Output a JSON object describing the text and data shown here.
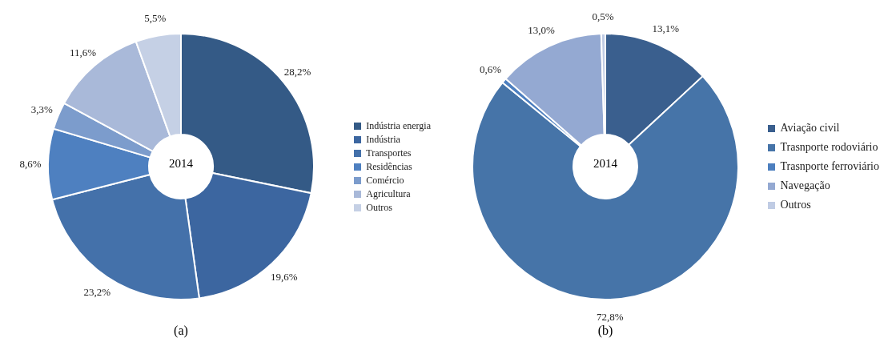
{
  "chart_data": [
    {
      "type": "donut",
      "categories": [
        "Indústria energia",
        "Indústria",
        "Transportes",
        "Residências",
        "Comércio",
        "Agricultura",
        "Outros"
      ],
      "values": [
        28.2,
        19.6,
        23.2,
        8.6,
        3.3,
        11.6,
        5.5
      ],
      "value_labels": [
        "28,2%",
        "19,6%",
        "23,2%",
        "8,6%",
        "3,3%",
        "11,6%",
        "5,5%"
      ],
      "colors": [
        "#345a86",
        "#3c66a0",
        "#4471aa",
        "#4e80c0",
        "#7c9ccc",
        "#a9b9d9",
        "#c5d0e5"
      ],
      "legend": "right",
      "annotations": [
        "2014",
        "(a)"
      ]
    },
    {
      "type": "donut",
      "categories": [
        "Aviação civil",
        "Trasnporte rodoviário",
        "Trasnporte ferroviário",
        "Navegação",
        "Outros"
      ],
      "values": [
        13.1,
        72.8,
        0.6,
        13.0,
        0.5
      ],
      "value_labels": [
        "13,1%",
        "72,8%",
        "0,6%",
        "13,0%",
        "0,5%"
      ],
      "colors": [
        "#3a5f8e",
        "#4674a8",
        "#4d7fbf",
        "#94a9d2",
        "#c0cce4"
      ],
      "legend": "right",
      "annotations": [
        "2014",
        "(b)"
      ]
    }
  ]
}
